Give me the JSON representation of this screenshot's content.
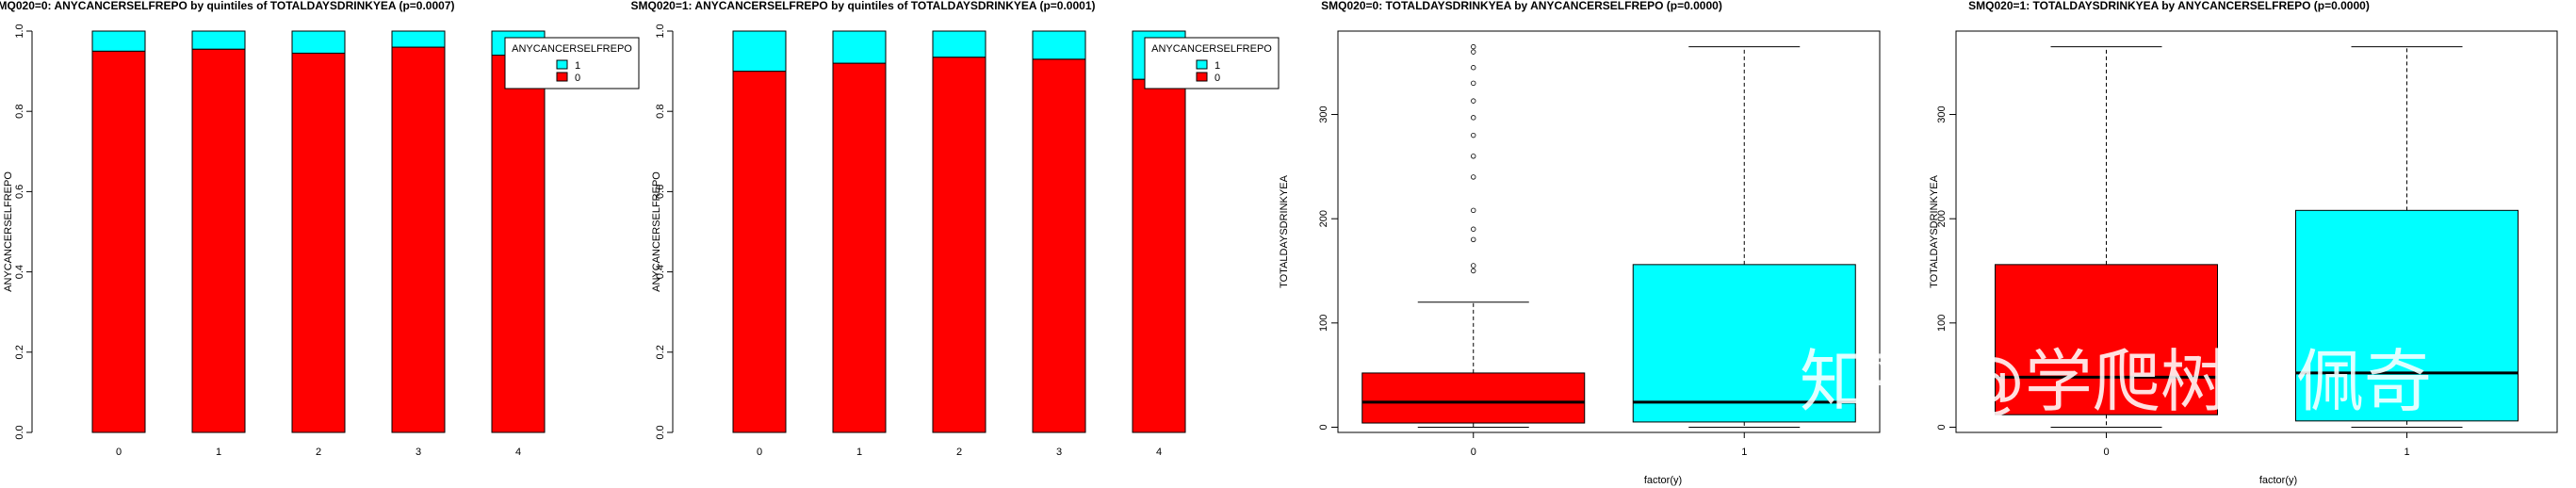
{
  "watermark": "知乎 @学爬树的佩奇",
  "colors": {
    "cat1": "#00ffff",
    "cat0": "#ff0000",
    "axis": "#000000"
  },
  "chart_data": [
    {
      "type": "bar",
      "stacked": true,
      "title": "SMQ020=0: ANYCANCERSELFREPO by quintiles of TOTALDAYSDRINKYEA (p=0.0007)",
      "xlabel": "",
      "ylabel": "ANYCANCERSELFREPO",
      "ylim": [
        0,
        1
      ],
      "yticks": [
        "0.0",
        "0.2",
        "0.4",
        "0.6",
        "0.8",
        "1.0"
      ],
      "categories": [
        "0",
        "1",
        "2",
        "3",
        "4"
      ],
      "series": [
        {
          "name": "0",
          "color": "#ff0000",
          "values": [
            0.95,
            0.955,
            0.945,
            0.96,
            0.94
          ]
        },
        {
          "name": "1",
          "color": "#00ffff",
          "values": [
            0.05,
            0.045,
            0.055,
            0.04,
            0.06
          ]
        }
      ],
      "legend": {
        "title": "ANYCANCERSELFREPO",
        "position": "top-right",
        "entries": [
          "1",
          "0"
        ]
      }
    },
    {
      "type": "bar",
      "stacked": true,
      "title": "SMQ020=1: ANYCANCERSELFREPO by quintiles of TOTALDAYSDRINKYEA (p=0.0001)",
      "xlabel": "",
      "ylabel": "ANYCANCERSELFREPO",
      "ylim": [
        0,
        1
      ],
      "yticks": [
        "0.0",
        "0.2",
        "0.4",
        "0.6",
        "0.8",
        "1.0"
      ],
      "categories": [
        "0",
        "1",
        "2",
        "3",
        "4"
      ],
      "series": [
        {
          "name": "0",
          "color": "#ff0000",
          "values": [
            0.9,
            0.92,
            0.935,
            0.93,
            0.88
          ]
        },
        {
          "name": "1",
          "color": "#00ffff",
          "values": [
            0.1,
            0.08,
            0.065,
            0.07,
            0.12
          ]
        }
      ],
      "legend": {
        "title": "ANYCANCERSELFREPO",
        "position": "top-right",
        "entries": [
          "1",
          "0"
        ]
      }
    },
    {
      "type": "box",
      "title": "SMQ020=0: TOTALDAYSDRINKYEA by ANYCANCERSELFREPO (p=0.0000)",
      "xlabel": "factor(y)",
      "ylabel": "TOTALDAYSDRINKYEA",
      "ylim": [
        -5,
        380
      ],
      "yticks": [
        0,
        100,
        200,
        300
      ],
      "categories": [
        "0",
        "1"
      ],
      "boxes": [
        {
          "name": "0",
          "color": "#ff0000",
          "min": 0,
          "q1": 4,
          "median": 24,
          "q3": 52,
          "max": 120,
          "outliers": [
            150,
            155,
            180,
            190,
            208,
            240,
            260,
            280,
            297,
            313,
            330,
            345,
            360,
            365
          ]
        },
        {
          "name": "1",
          "color": "#00ffff",
          "min": 0,
          "q1": 5,
          "median": 24,
          "q3": 156,
          "max": 365,
          "outliers": []
        }
      ]
    },
    {
      "type": "box",
      "title": "SMQ020=1: TOTALDAYSDRINKYEA by ANYCANCERSELFREPO (p=0.0000)",
      "xlabel": "factor(y)",
      "ylabel": "TOTALDAYSDRINKYEA",
      "ylim": [
        -5,
        380
      ],
      "yticks": [
        0,
        100,
        200,
        300
      ],
      "categories": [
        "0",
        "1"
      ],
      "boxes": [
        {
          "name": "0",
          "color": "#ff0000",
          "min": 0,
          "q1": 12,
          "median": 48,
          "q3": 156,
          "max": 365,
          "outliers": []
        },
        {
          "name": "1",
          "color": "#00ffff",
          "min": 0,
          "q1": 6,
          "median": 52,
          "q3": 208,
          "max": 365,
          "outliers": []
        }
      ]
    }
  ]
}
